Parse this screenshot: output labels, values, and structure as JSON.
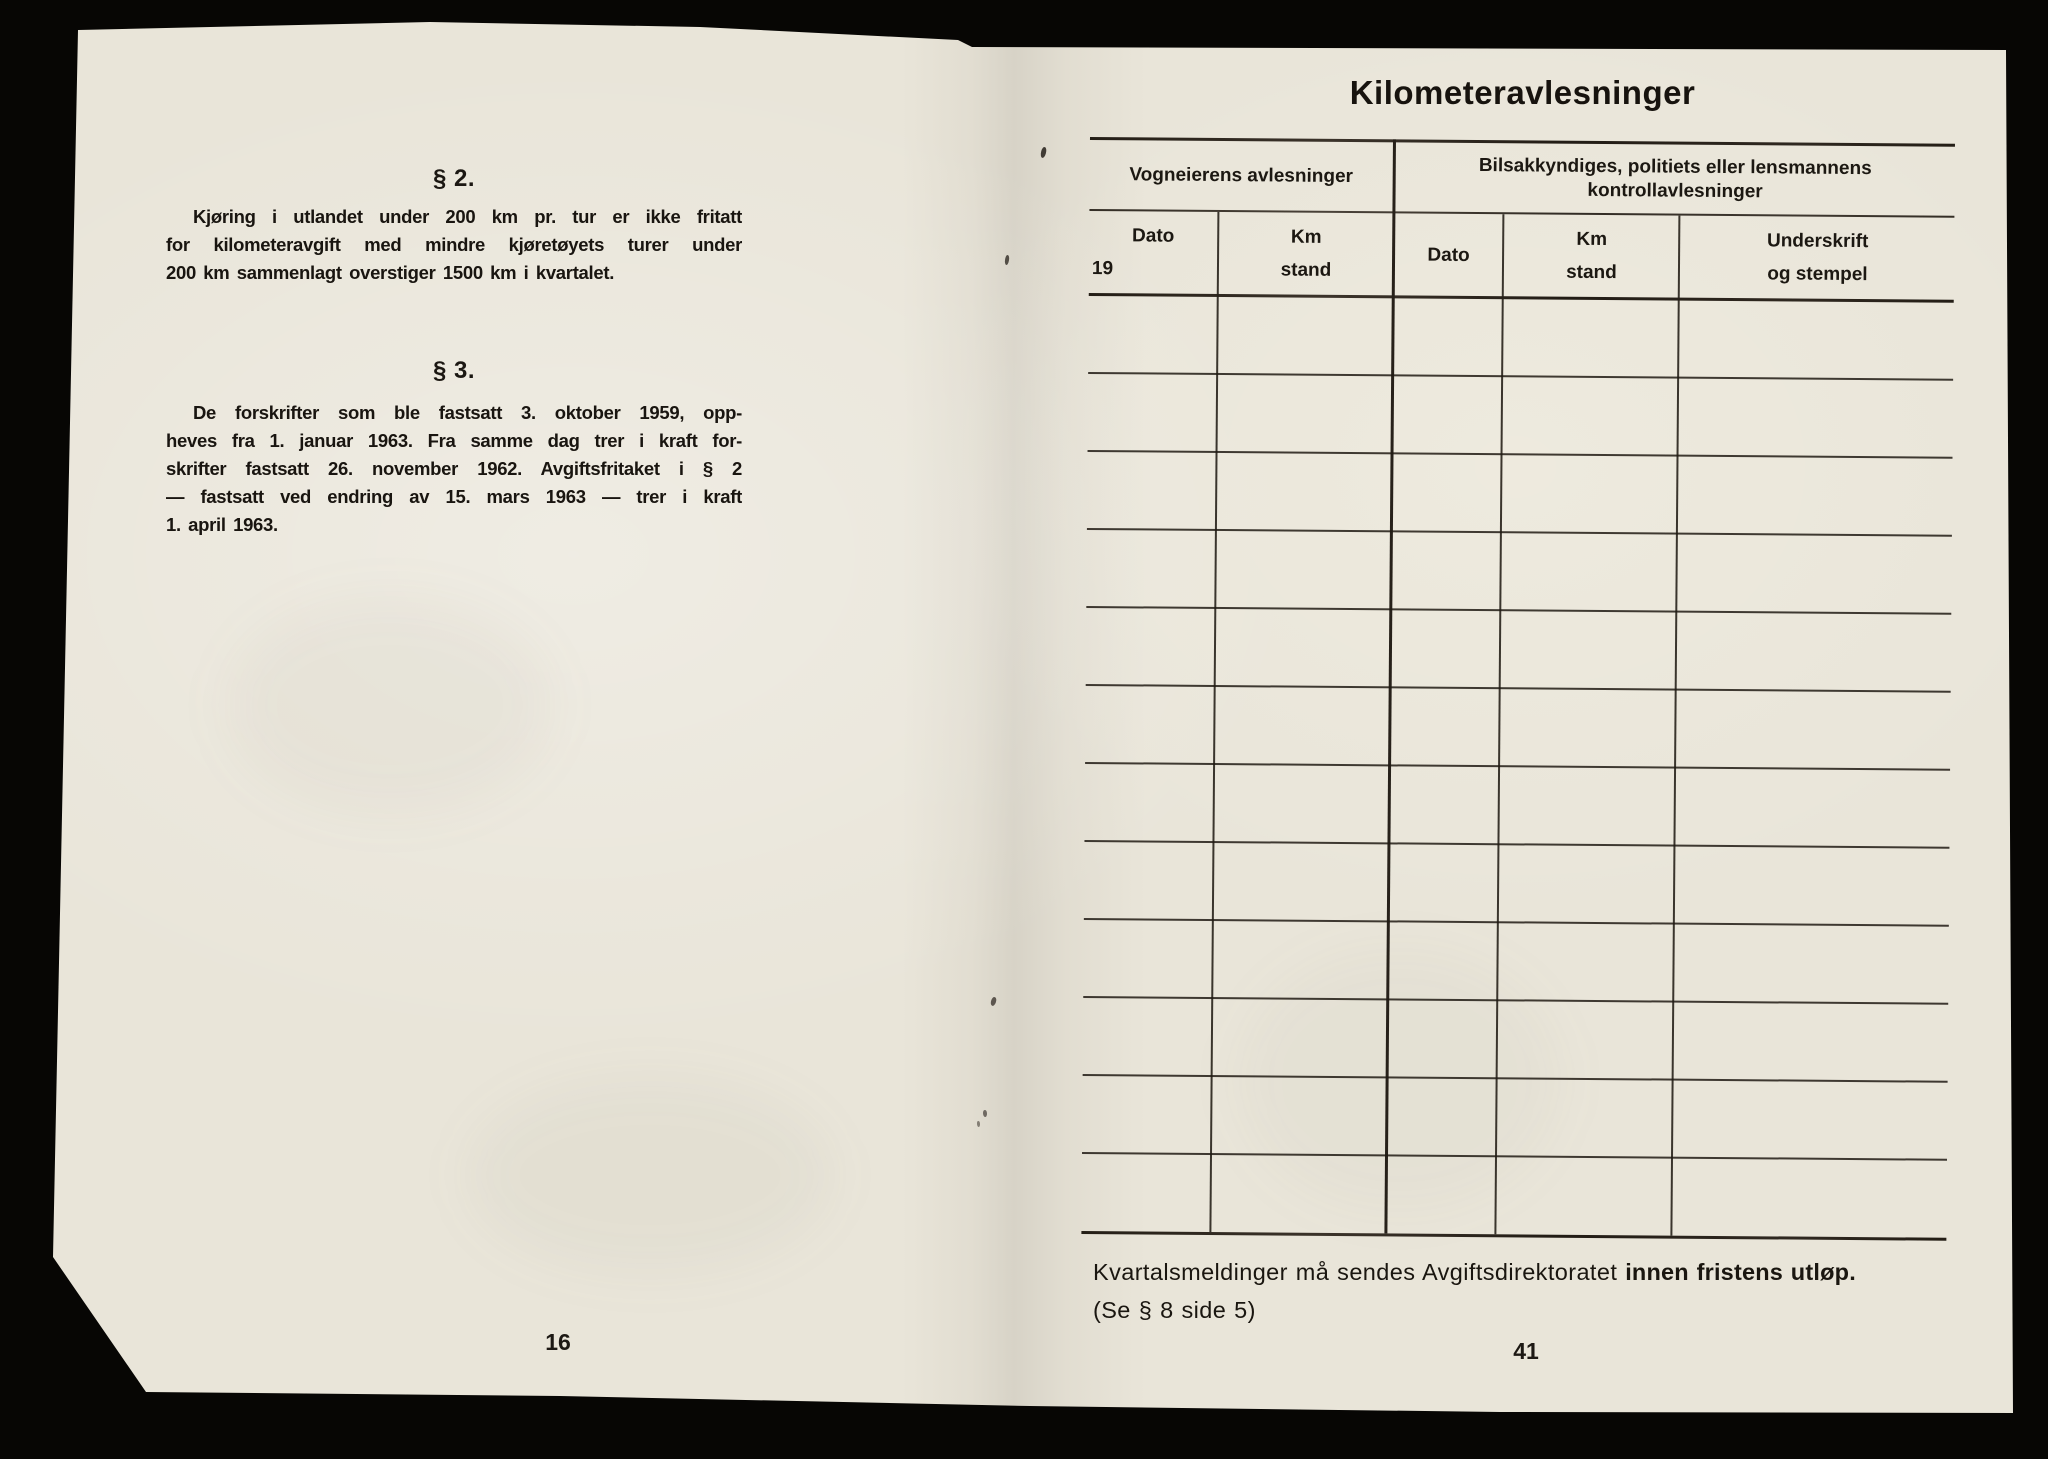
{
  "scan": {
    "left_page": {
      "section_2": {
        "heading": "§ 2.",
        "lines": [
          "Kjøring i utlandet under 200 km pr. tur er ikke fritatt",
          "for kilometeravgift med mindre kjøretøyets turer under",
          "200 km sammenlagt overstiger 1500 km i kvartalet."
        ]
      },
      "section_3": {
        "heading": "§ 3.",
        "lines": [
          "De forskrifter som ble fastsatt 3. oktober 1959, opp-",
          "heves fra 1. januar 1963. Fra samme dag trer i kraft for-",
          "skrifter fastsatt 26. november 1962. Avgiftsfritaket i § 2",
          "— fastsatt ved endring av 15. mars 1963 — trer i kraft",
          "1. april 1963."
        ]
      },
      "page_number": "16"
    },
    "right_page": {
      "title": "Kilometeravlesninger",
      "table": {
        "group_headers": {
          "owner": "Vogneierens avlesninger",
          "control_line1": "Bilsakkyndiges, politiets eller lensmannens",
          "control_line2": "kontrollavlesninger"
        },
        "column_headers": {
          "col1_line1": "Dato",
          "col1_line2": "19",
          "col2_line1": "Km",
          "col2_line2": "stand",
          "col3": "Dato",
          "col4_line1": "Km",
          "col4_line2": "stand",
          "col5_line1": "Underskrift",
          "col5_line2": "og stempel"
        },
        "empty_row_count": 12
      },
      "footer": {
        "line1_normal": "Kvartalsmeldinger må sendes Avgiftsdirektoratet ",
        "line1_bold": "innen fristens utløp.",
        "line2": "(Se § 8 side 5)"
      },
      "page_number": "41"
    },
    "colors": {
      "paper": "#e9e5d9",
      "ink": "#1b1712",
      "background": "#070604"
    }
  }
}
